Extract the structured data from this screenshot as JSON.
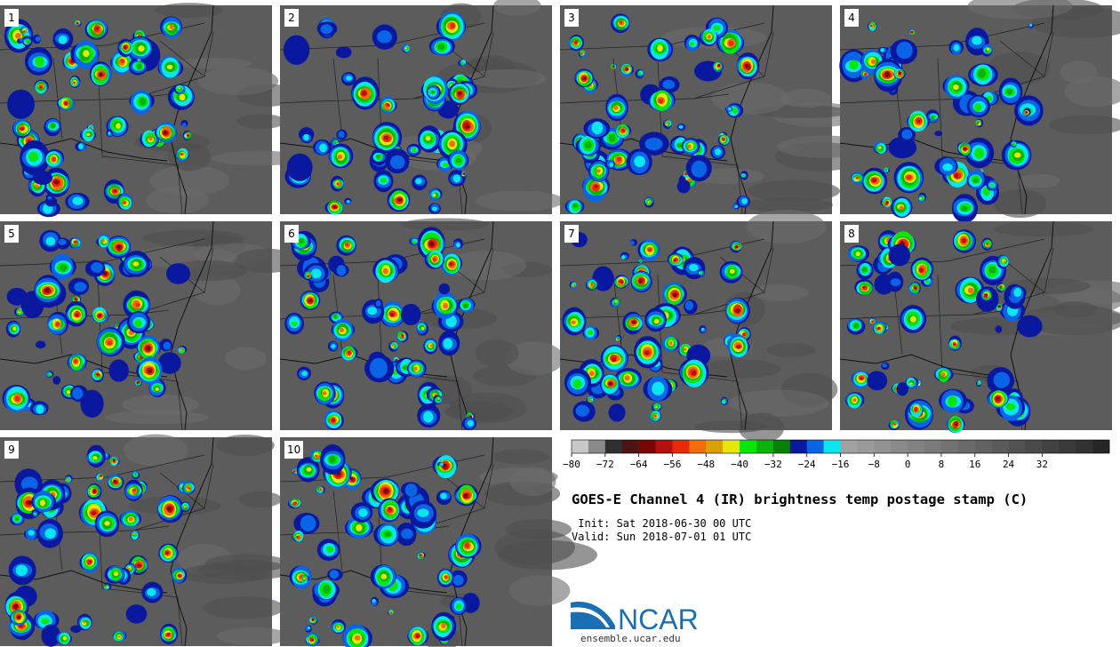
{
  "panels": [
    {
      "label": "1"
    },
    {
      "label": "2"
    },
    {
      "label": "3"
    },
    {
      "label": "4"
    },
    {
      "label": "5"
    },
    {
      "label": "6"
    },
    {
      "label": "7"
    },
    {
      "label": "8"
    },
    {
      "label": "9"
    },
    {
      "label": "10"
    }
  ],
  "colorbar": {
    "colors": [
      "#c8c8c8",
      "#8a8a8a",
      "#303030",
      "#4e1414",
      "#7a0505",
      "#b51010",
      "#e62a0a",
      "#f06d0a",
      "#d9a106",
      "#e6e60a",
      "#0ae60a",
      "#07b407",
      "#058205",
      "#0a18a0",
      "#0a64e6",
      "#0ae6f0",
      "#a2a2a2",
      "#9a9a9a",
      "#929292",
      "#8a8a8a",
      "#828282",
      "#7a7a7a",
      "#727272",
      "#6a6a6a",
      "#626262",
      "#5a5a5a",
      "#525252",
      "#4a4a4a",
      "#424242",
      "#3a3a3a",
      "#323232",
      "#262626"
    ],
    "ticks": [
      "−80",
      "−72",
      "−64",
      "−56",
      "−48",
      "−40",
      "−32",
      "−24",
      "−16",
      "−8",
      "0",
      "8",
      "16",
      "24",
      "32"
    ]
  },
  "title": "GOES-E Channel 4 (IR) brightness temp postage stamp (C)",
  "init": " Init: Sat 2018-06-30 00 UTC",
  "valid": "Valid: Sun 2018-07-01 01 UTC",
  "logo": {
    "name": "ncar-logo",
    "text": "NCAR",
    "url": "ensemble.ucar.edu",
    "color": "#1a6fb3"
  }
}
